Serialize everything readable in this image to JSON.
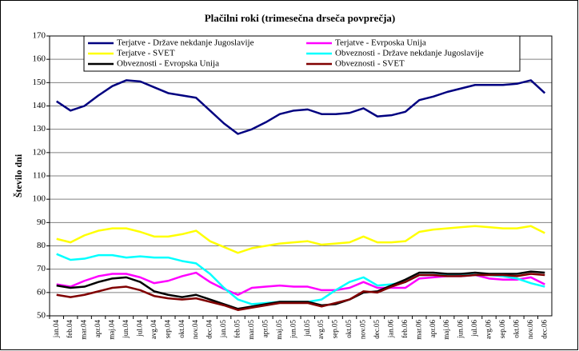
{
  "chart_data": {
    "type": "line",
    "title": "Plačilni roki (trimesečna drseča povprečja)",
    "y_label": "Število dni",
    "categories": [
      "jan.04",
      "feb.04",
      "mar.04",
      "apr.04",
      "maj.04",
      "jun.04",
      "jul.04",
      "avg.04",
      "sep.04",
      "okt.04",
      "nov.04",
      "dec.04",
      "jan.05",
      "feb.05",
      "mar.05",
      "apr.05",
      "maj.05",
      "jun.05",
      "jul.05",
      "avg.05",
      "sep.05",
      "okt.05",
      "nov.05",
      "dec.05",
      "jan.06",
      "feb.06",
      "mar.06",
      "apr.06",
      "maj.06",
      "jun.06",
      "jul.06",
      "avg.06",
      "sep.06",
      "okt.06",
      "nov.06",
      "dec.06"
    ],
    "series": [
      {
        "name": "Terjatve - Države nekdanje Jugoslavije",
        "color": "#000080",
        "values": [
          142,
          138,
          140,
          144.5,
          148.5,
          151,
          150.5,
          148,
          145.5,
          144.5,
          143.5,
          138,
          132.5,
          128,
          130,
          133,
          136.5,
          138,
          138.5,
          136.5,
          136.5,
          137,
          139,
          135.5,
          136,
          137.5,
          142.5,
          144,
          146,
          147.5,
          149,
          149,
          149,
          149.5,
          151,
          145.5
        ]
      },
      {
        "name": "Terjatve - Evrposka Unija",
        "color": "#ff00ff",
        "values": [
          63.5,
          62.5,
          65,
          67,
          68,
          68,
          66.5,
          64,
          65,
          67,
          68.5,
          64.5,
          61.5,
          59,
          62,
          62.5,
          63,
          62.5,
          62.5,
          61,
          61,
          62,
          64.5,
          62,
          62,
          62,
          66,
          66.5,
          67,
          67,
          67.5,
          66,
          65.5,
          65.5,
          66.5,
          63.5
        ]
      },
      {
        "name": "Terjatve - SVET",
        "color": "#ffff00",
        "values": [
          83,
          81.5,
          84.5,
          86.5,
          87.5,
          87.5,
          86,
          84,
          84,
          85,
          86.5,
          82,
          79.5,
          77,
          79,
          80,
          81,
          81.5,
          82,
          80.5,
          81,
          81.5,
          84,
          81.5,
          81.5,
          82,
          86,
          87,
          87.5,
          88,
          88.5,
          88,
          87.5,
          87.5,
          88.5,
          85.5
        ]
      },
      {
        "name": "Obveznosti - Države nekdanje Jugoslavije",
        "color": "#00ffff",
        "values": [
          76.5,
          74,
          74.5,
          76,
          76,
          75,
          75.5,
          75,
          75,
          73.5,
          72.5,
          68,
          62,
          57,
          55,
          55.5,
          56,
          56,
          56,
          57,
          61,
          64.5,
          66.5,
          63,
          63.5,
          64.5,
          67.5,
          67.5,
          67.5,
          68,
          67.5,
          67.5,
          67,
          66,
          64,
          62.5
        ]
      },
      {
        "name": "Obveznosti - Evropska Unija",
        "color": "#000000",
        "values": [
          63,
          62,
          62.5,
          64.5,
          66,
          66.5,
          64.5,
          60.5,
          59,
          58,
          59,
          57,
          55,
          53,
          54,
          55,
          56,
          56,
          56,
          54.5,
          55,
          57,
          60,
          60.5,
          63,
          65.5,
          68.5,
          68.5,
          68,
          68,
          68.5,
          68,
          68,
          68,
          69,
          68.5
        ]
      },
      {
        "name": "Obveznosti - SVET",
        "color": "#800000",
        "values": [
          59,
          58,
          59,
          60.5,
          62,
          62.5,
          61,
          58.5,
          57.5,
          57,
          57.5,
          56,
          54.5,
          52.5,
          53.5,
          54.5,
          55.5,
          55.5,
          55.5,
          54,
          55.5,
          57,
          60.5,
          60,
          62.5,
          64.5,
          67.5,
          67.5,
          67,
          67,
          67.5,
          67.5,
          67.5,
          67,
          68,
          67.5
        ]
      }
    ],
    "ylim": [
      50,
      170
    ],
    "yticks": [
      50,
      60,
      70,
      80,
      90,
      100,
      110,
      120,
      130,
      140,
      150,
      160,
      170
    ],
    "grid": true
  }
}
